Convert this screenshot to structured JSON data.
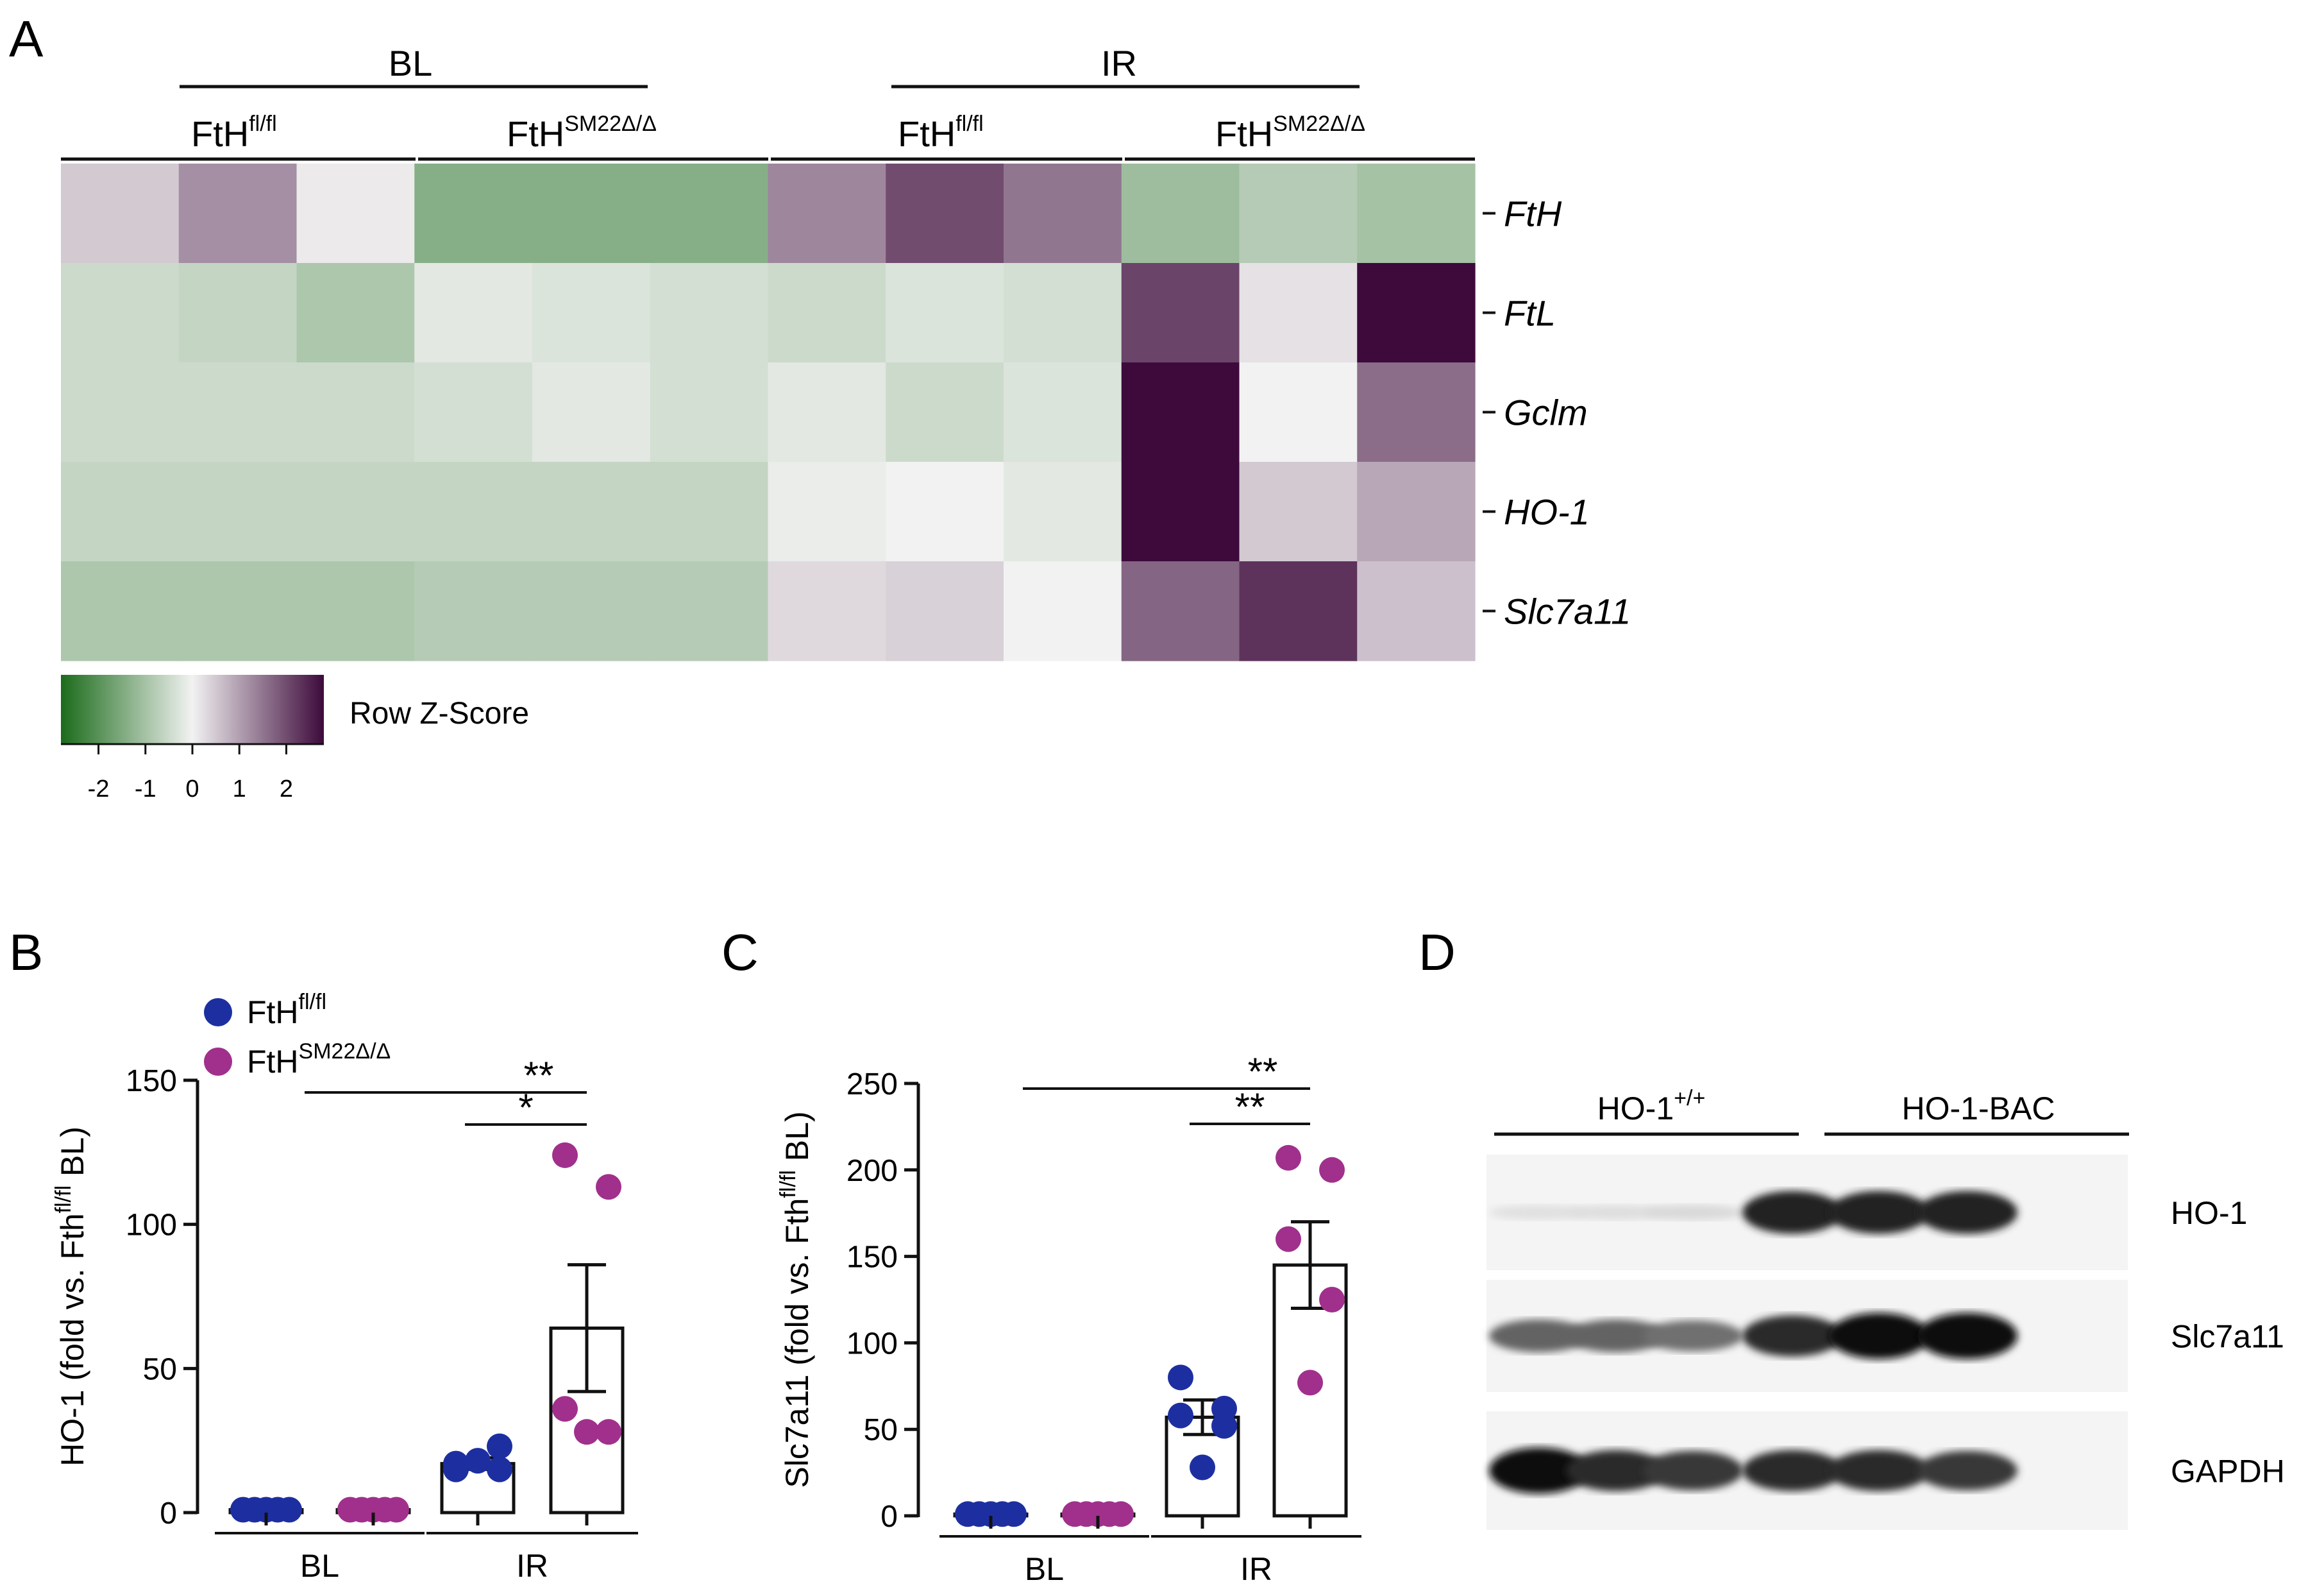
{
  "panels": {
    "a": "A",
    "b": "B",
    "c": "C",
    "d": "D"
  },
  "colors": {
    "fl": "#1d2fa0",
    "sm": "#a0308c",
    "low": "#1b6b1b",
    "mid": "#f2f2f2",
    "high": "#3d0a3b"
  },
  "heatmap": {
    "conditions": [
      "BL",
      "IR"
    ],
    "genotypes": [
      {
        "base": "FtH",
        "sup": "fl/fl"
      },
      {
        "base": "FtH",
        "sup": "SM22Δ/Δ"
      },
      {
        "base": "FtH",
        "sup": "fl/fl"
      },
      {
        "base": "FtH",
        "sup": "SM22Δ/Δ"
      }
    ],
    "genes": [
      "FtH",
      "FtL",
      "Gclm",
      "HO-1",
      "Slc7a11"
    ],
    "scale_label": "Row Z-Score",
    "scale_ticks": [
      "-2",
      "-1",
      "0",
      "1",
      "2"
    ],
    "scale_range": [
      -2.8,
      2.8
    ]
  },
  "chart_data": [
    {
      "type": "heatmap",
      "rows": [
        "FtH",
        "FtL",
        "Gclm",
        "HO-1",
        "Slc7a11"
      ],
      "columns": 12,
      "values": [
        [
          0.5,
          1.2,
          0.1,
          -1.4,
          -1.4,
          -1.4,
          1.3,
          2.0,
          1.5,
          -1.1,
          -0.8,
          -1.0
        ],
        [
          -0.5,
          -0.6,
          -0.9,
          -0.2,
          -0.3,
          -0.4,
          -0.5,
          -0.3,
          -0.4,
          2.1,
          0.2,
          2.8
        ],
        [
          -0.5,
          -0.5,
          -0.5,
          -0.4,
          -0.2,
          -0.4,
          -0.2,
          -0.5,
          -0.3,
          3.0,
          0.0,
          1.6
        ],
        [
          -0.6,
          -0.6,
          -0.6,
          -0.6,
          -0.6,
          -0.6,
          -0.1,
          0.0,
          -0.2,
          3.1,
          0.5,
          0.9
        ],
        [
          -0.9,
          -0.9,
          -0.9,
          -0.8,
          -0.8,
          -0.8,
          0.3,
          0.4,
          0.0,
          1.7,
          2.3,
          0.6
        ]
      ]
    },
    {
      "type": "scatter",
      "ylabel": {
        "pre": "HO-1 (fold vs. Fth",
        "sup": "fl/fl",
        "post": " BL)"
      },
      "ylim": [
        0,
        150
      ],
      "yticks": [
        "0",
        "50",
        "100",
        "150"
      ],
      "groups": [
        "BL",
        "IR"
      ],
      "series": [
        {
          "name": {
            "base": "FtH",
            "sup": "fl/fl"
          },
          "bars": [
            1,
            17
          ],
          "err": [
            0,
            2
          ],
          "points": [
            [
              1,
              1,
              1,
              1,
              1
            ],
            [
              17,
              23,
              15,
              15,
              18
            ]
          ]
        },
        {
          "name": {
            "base": "FtH",
            "sup": "SM22Δ/Δ"
          },
          "bars": [
            1,
            64
          ],
          "err": [
            0,
            22
          ],
          "points": [
            [
              1,
              1,
              1,
              1,
              1
            ],
            [
              124,
              113,
              36,
              28,
              28
            ]
          ]
        }
      ],
      "significance": [
        {
          "label": "**",
          "from": "BL",
          "to": "IR"
        },
        {
          "label": "*",
          "from": "IR",
          "to": "IR"
        }
      ]
    },
    {
      "type": "scatter",
      "ylabel": {
        "pre": "Slc7a11 (fold vs. Fth",
        "sup": "fl/fl",
        "post": " BL)"
      },
      "ylim": [
        0,
        250
      ],
      "yticks": [
        "0",
        "50",
        "100",
        "150",
        "200",
        "250"
      ],
      "groups": [
        "BL",
        "IR"
      ],
      "series": [
        {
          "name": {
            "base": "FtH",
            "sup": "fl/fl"
          },
          "bars": [
            1,
            57
          ],
          "err": [
            0,
            10
          ],
          "points": [
            [
              1,
              1,
              1,
              1,
              1
            ],
            [
              80,
              62,
              58,
              52,
              28
            ]
          ]
        },
        {
          "name": {
            "base": "FtH",
            "sup": "SM22Δ/Δ"
          },
          "bars": [
            1,
            145
          ],
          "err": [
            0,
            25
          ],
          "points": [
            [
              1,
              1,
              1,
              1,
              1
            ],
            [
              207,
              200,
              160,
              125,
              77
            ]
          ]
        }
      ],
      "significance": [
        {
          "label": "**",
          "from": "BL",
          "to": "IR"
        },
        {
          "label": "**",
          "from": "IR",
          "to": "IR"
        }
      ]
    }
  ],
  "blot": {
    "groups": [
      {
        "base": "HO-1",
        "sup": "+/+"
      },
      {
        "base": "HO-1-BAC",
        "sup": ""
      }
    ],
    "bands": [
      "HO-1",
      "Slc7a11",
      "GAPDH"
    ],
    "intensity": [
      [
        0.05,
        0.06,
        0.08,
        0.9,
        0.9,
        0.9
      ],
      [
        0.6,
        0.6,
        0.55,
        0.85,
        1.0,
        1.0
      ],
      [
        1.0,
        0.85,
        0.8,
        0.85,
        0.85,
        0.8
      ]
    ]
  }
}
